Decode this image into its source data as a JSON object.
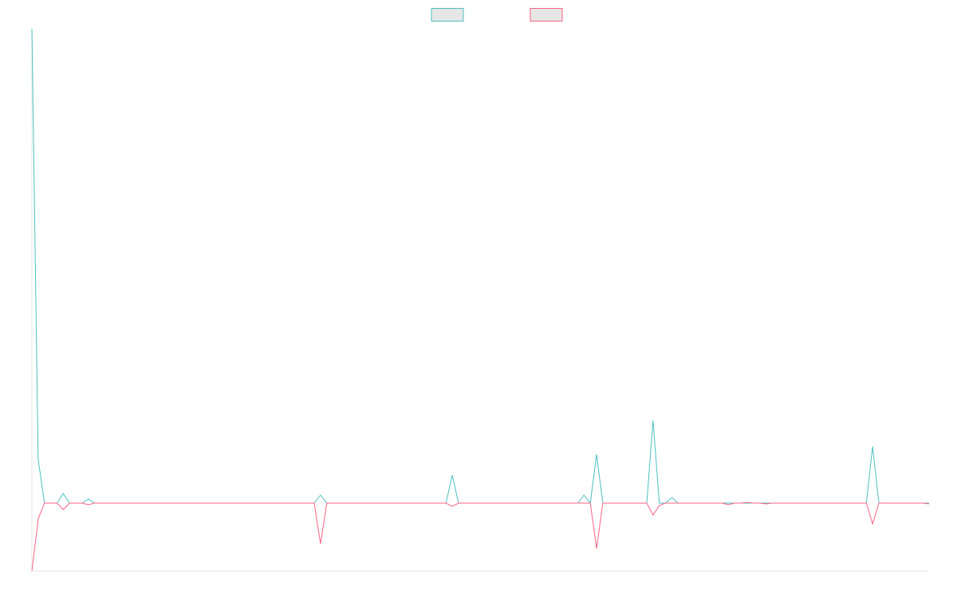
{
  "chart_data": {
    "type": "line",
    "categories": [
      null,
      null,
      null,
      null,
      null,
      null,
      null,
      null,
      null,
      null,
      null,
      null,
      null,
      null,
      null,
      null,
      null,
      null,
      null,
      null,
      null,
      null,
      null,
      null,
      null,
      null,
      null,
      null,
      null,
      null,
      null,
      null,
      null,
      null,
      null,
      null,
      null,
      null,
      null,
      null,
      null,
      null,
      null,
      null,
      null,
      null,
      null,
      null,
      null,
      null,
      null,
      null,
      null,
      null,
      null,
      null,
      null,
      null,
      null,
      null,
      null,
      null,
      null,
      null,
      null,
      null,
      null,
      null,
      null,
      null,
      null,
      null,
      null,
      null,
      null,
      null,
      null,
      null,
      null,
      null,
      null,
      null,
      null,
      null,
      null,
      null,
      null,
      null,
      null,
      null,
      null,
      null,
      null,
      null,
      null,
      null,
      null,
      null,
      null,
      null,
      null,
      null,
      null,
      null,
      null,
      null,
      null,
      null,
      null,
      null,
      null,
      null,
      null,
      null,
      null,
      null,
      null,
      null,
      null,
      null,
      null,
      null,
      null,
      null,
      null,
      null,
      null,
      null,
      null,
      null,
      null,
      null,
      null,
      null,
      null,
      null,
      null,
      null,
      null,
      null,
      null,
      null,
      null,
      null
    ],
    "series": [
      {
        "color": "#4bc0c0",
        "values": [
          119,
          11,
          0,
          0,
          0,
          2.4,
          0,
          0,
          0,
          1,
          0,
          0,
          0,
          0,
          0,
          0,
          0,
          0,
          0,
          0,
          0,
          0,
          0,
          0,
          0,
          0,
          0,
          0,
          0,
          0,
          0,
          0,
          0,
          0,
          0,
          0,
          0,
          0,
          0,
          0,
          0,
          0,
          0,
          0,
          0,
          0,
          2,
          0,
          0,
          0,
          0,
          0,
          0,
          0,
          0,
          0,
          0,
          0,
          0,
          0,
          0,
          0,
          0,
          0,
          0,
          0,
          0,
          7,
          0,
          0,
          0,
          0,
          0,
          0,
          0,
          0,
          0,
          0,
          0,
          0,
          0,
          0,
          0,
          0,
          0,
          0,
          0,
          0,
          2,
          0,
          12.2,
          0,
          0,
          0,
          0,
          0,
          0,
          0,
          0,
          20.8,
          0,
          0,
          1.4,
          0,
          0,
          0,
          0,
          0,
          0,
          0,
          0,
          0,
          0,
          0,
          0,
          0,
          0,
          0,
          0,
          0,
          0,
          0,
          0,
          0,
          0,
          0,
          0,
          0,
          0,
          0,
          0,
          0,
          0,
          0,
          14.2,
          0,
          0,
          0,
          0,
          0,
          0,
          0,
          0,
          0
        ]
      },
      {
        "color": "#ff6384",
        "values": [
          -17,
          -4,
          0,
          0,
          0,
          -1.6,
          0,
          0,
          0,
          -0.4,
          0,
          0,
          0,
          0,
          0,
          0,
          0,
          0,
          0,
          0,
          0,
          0,
          0,
          0,
          0,
          0,
          0,
          0,
          0,
          0,
          0,
          0,
          0,
          0,
          0,
          0,
          0,
          0,
          0,
          0,
          0,
          0,
          0,
          0,
          0,
          0,
          -10.2,
          0,
          0,
          0,
          0,
          0,
          0,
          0,
          0,
          0,
          0,
          0,
          0,
          0,
          0,
          0,
          0,
          0,
          0,
          0,
          0,
          -0.8,
          0,
          0,
          0,
          0,
          0,
          0,
          0,
          0,
          0,
          0,
          0,
          0,
          0,
          0,
          0,
          0,
          0,
          0,
          0,
          0,
          0,
          0,
          -11.4,
          0,
          0,
          0,
          0,
          0,
          0,
          0,
          0,
          -3,
          -0.6,
          0,
          0,
          0,
          0,
          0,
          0,
          0,
          0,
          0,
          0,
          -0.4,
          0,
          0,
          0.2,
          0,
          0,
          -0.2,
          0,
          0,
          0,
          0,
          0,
          0,
          0,
          0,
          0,
          0,
          0,
          0,
          0,
          0,
          0,
          0,
          -5.2,
          0,
          0,
          0,
          0,
          0,
          0,
          0,
          0,
          -0.2
        ]
      }
    ],
    "ylim": [
      -17,
      119
    ],
    "grid": false,
    "legend": "top"
  }
}
